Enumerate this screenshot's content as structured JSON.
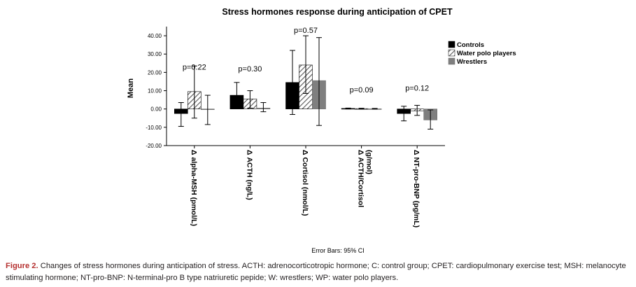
{
  "chart_data": {
    "type": "bar",
    "title": "Stress hormones response during anticipation of CPET",
    "ylabel": "Mean",
    "xlabel": "",
    "ylim": [
      -20,
      45
    ],
    "yticks": [
      -20,
      -10,
      0,
      10,
      20,
      30,
      40
    ],
    "ytick_labels": [
      "-20.00",
      "-10.00",
      "0.00",
      "10.00",
      "20.00",
      "30.00",
      "40.00"
    ],
    "categories": [
      "Δ alpha-MSH (pmol/L)",
      "Δ ACTH (ng/L)",
      "Δ Cortisol (nmol/L)",
      "Δ ACTH/Cortisol (g/mol)",
      "Δ NT-pro-BNP (pg/mL)"
    ],
    "category_lines": [
      [
        "Δ alpha-MSH (pmol/L)"
      ],
      [
        "Δ ACTH (ng/L)"
      ],
      [
        "Δ Cortisol (nmol/L)"
      ],
      [
        "Δ ACTH/Cortisol",
        "(g/mol)"
      ],
      [
        "Δ NT-pro-BNP (pg/mL)"
      ]
    ],
    "series": [
      {
        "name": "Controls",
        "values": [
          -2.5,
          7.5,
          14.5,
          0.3,
          -2.5
        ],
        "ci_low": [
          -9.5,
          0.5,
          -3.0,
          0.0,
          -6.5
        ],
        "ci_high": [
          3.5,
          14.5,
          32.0,
          0.5,
          1.5
        ]
      },
      {
        "name": "Water polo players",
        "values": [
          9.5,
          5.5,
          24.0,
          0.2,
          -1.0
        ],
        "ci_low": [
          -5.0,
          0.5,
          8.5,
          0.0,
          -3.5
        ],
        "ci_high": [
          23.5,
          10.0,
          40.0,
          0.4,
          2.0
        ]
      },
      {
        "name": "Wrestlers",
        "values": [
          -0.2,
          0.5,
          15.5,
          0.1,
          -6.0
        ],
        "ci_low": [
          -8.5,
          -1.5,
          -9.0,
          0.0,
          -11.0
        ],
        "ci_high": [
          7.5,
          3.5,
          39.0,
          0.3,
          -0.5
        ]
      }
    ],
    "p_values": [
      "p=0.22",
      "p=0.30",
      "p=0.57",
      "p=0.09",
      "p=0.12"
    ],
    "p_value_positions": [
      21.5,
      20.5,
      41.5,
      9.0,
      10.0
    ],
    "legend_position": "top-right",
    "error_bar_note": "Error Bars: 95% CI",
    "grid": false
  },
  "colors": {
    "controls": "#000000",
    "water_polo": "#555555",
    "wrestlers": "#7f7f7f",
    "caption_label": "#b5302f"
  },
  "caption": {
    "label": "Figure 2.",
    "text": "Changes of stress hormones during anticipation of stress. ACTH: adrenocorticotropic hormone; C: control group; CPET: cardiopulmonary exercise test; MSH: melanocyte stimulating hormone; NT-pro-BNP: N-terminal-pro B type natriuretic pepide; W: wrestlers; WP: water polo players."
  }
}
